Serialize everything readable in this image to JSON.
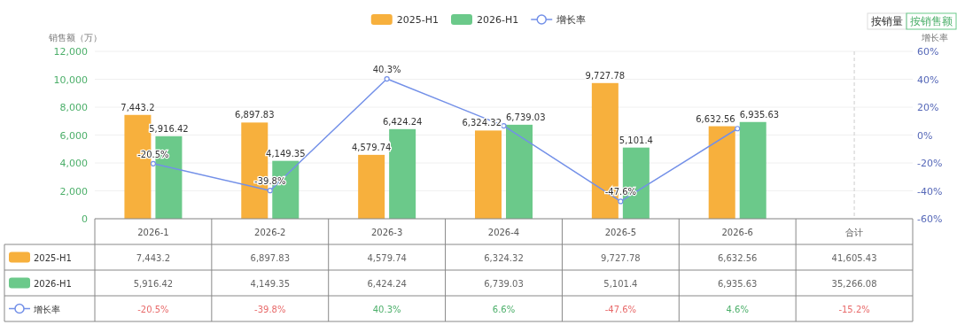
{
  "chart_data": {
    "type": "bar",
    "categories": [
      "2026-1",
      "2026-2",
      "2026-3",
      "2026-4",
      "2026-5",
      "2026-6",
      "合计"
    ],
    "series": [
      {
        "name": "2025-H1",
        "color": "#f7b03d",
        "values": [
          7443.2,
          6897.83,
          4579.74,
          6324.32,
          9727.78,
          6632.56,
          null
        ],
        "value_labels": [
          "7,443.2",
          "6,897.83",
          "4,579.74",
          "6,324.32",
          "9,727.78",
          "6,632.56",
          "41,605.43"
        ]
      },
      {
        "name": "2026-H1",
        "color": "#6bc98a",
        "values": [
          5916.42,
          4149.35,
          6424.24,
          6739.03,
          5101.4,
          6935.63,
          null
        ],
        "value_labels": [
          "5,916.42",
          "4,149.35",
          "6,424.24",
          "6,739.03",
          "5,101.4",
          "6,935.63",
          "35,266.08"
        ]
      },
      {
        "name": "增长率",
        "type": "line",
        "axis": "y2",
        "color": "#7390e8",
        "marker": "circle",
        "values": [
          -20.5,
          -39.8,
          40.3,
          6.6,
          -47.6,
          4.6,
          null
        ],
        "value_labels": [
          "-20.5%",
          "-39.8%",
          "40.3%",
          "6.6%",
          "-47.6%",
          "4.6%",
          "-15.2%"
        ]
      }
    ],
    "ylabel": "销售额（万）",
    "y2label": "增长率",
    "ylim": [
      0,
      12000
    ],
    "yticks": [
      {
        "value": 0,
        "label": "0"
      },
      {
        "value": 2000,
        "label": "2,000"
      },
      {
        "value": 4000,
        "label": "4,000"
      },
      {
        "value": 6000,
        "label": "6,000"
      },
      {
        "value": 8000,
        "label": "8,000"
      },
      {
        "value": 10000,
        "label": "10,000"
      },
      {
        "value": 12000,
        "label": "12,000"
      }
    ],
    "y2lim": [
      -60,
      60
    ],
    "y2ticks": [
      {
        "value": -60,
        "label": "-60%"
      },
      {
        "value": -40,
        "label": "-40%"
      },
      {
        "value": -20,
        "label": "-20%"
      },
      {
        "value": 0,
        "label": "0%"
      },
      {
        "value": 20,
        "label": "20%"
      },
      {
        "value": 40,
        "label": "40%"
      },
      {
        "value": 60,
        "label": "60%"
      }
    ],
    "grid": "y",
    "legend": "top",
    "ref_lines": [
      {
        "axis": "x",
        "value": "合计",
        "line_style": "dashed",
        "color": "#cccccc"
      }
    ],
    "annotations": [
      "按销量",
      "按销售额"
    ]
  }
}
